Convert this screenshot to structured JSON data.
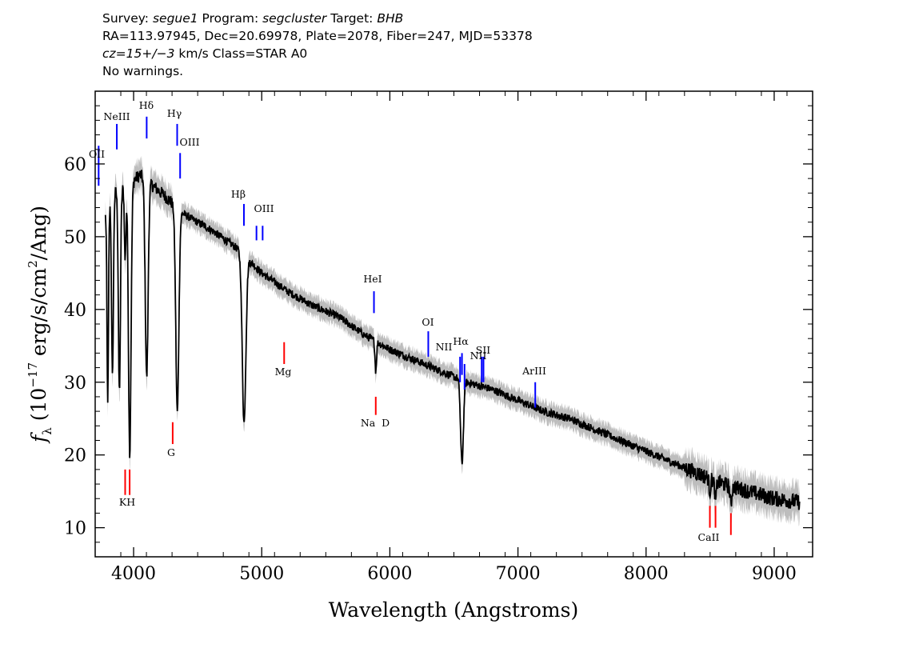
{
  "header": {
    "line1": {
      "survey_label": "Survey: ",
      "survey": "segue1",
      "program_label": " Program: ",
      "program": "segcluster",
      "target_label": " Target: ",
      "target": "BHB"
    },
    "line2": "RA=113.97945, Dec=20.69978, Plate=2078, Fiber=247, MJD=53378",
    "line3": {
      "cz": "cz=15+/−3",
      "rest": " km/s Class=STAR A0"
    },
    "line4": "No warnings."
  },
  "chart_data": {
    "type": "line",
    "title": "",
    "xlabel": "Wavelength (Angstroms)",
    "ylabel": {
      "f": "f",
      "sub": "λ",
      "pre": " (10",
      "exp": "−17",
      "mid": " erg/s/cm",
      "exp2": "2",
      "post": "/Ang)"
    },
    "xlim": [
      3700,
      9300
    ],
    "ylim": [
      6,
      70
    ],
    "xticks": [
      4000,
      5000,
      6000,
      7000,
      8000,
      9000
    ],
    "yticks": [
      10,
      20,
      30,
      40,
      50,
      60
    ],
    "colors": {
      "spectrum": "#000000",
      "error": "#bdbdbd",
      "emission": "#0000ff",
      "absorption": "#ff0000"
    },
    "continuum": [
      [
        3780,
        53
      ],
      [
        3850,
        56
      ],
      [
        3950,
        57
      ],
      [
        4050,
        58.5
      ],
      [
        4150,
        57
      ],
      [
        4250,
        55.5
      ],
      [
        4400,
        53
      ],
      [
        4600,
        51
      ],
      [
        4800,
        48.5
      ],
      [
        5000,
        45
      ],
      [
        5200,
        42.5
      ],
      [
        5400,
        40.5
      ],
      [
        5600,
        39
      ],
      [
        5800,
        36.5
      ],
      [
        6000,
        34.5
      ],
      [
        6200,
        33
      ],
      [
        6400,
        31.5
      ],
      [
        6600,
        30
      ],
      [
        6800,
        29
      ],
      [
        7000,
        27.5
      ],
      [
        7200,
        26
      ],
      [
        7400,
        25
      ],
      [
        7600,
        23.5
      ],
      [
        7800,
        22
      ],
      [
        8000,
        20.5
      ],
      [
        8200,
        19
      ],
      [
        8400,
        17.5
      ],
      [
        8600,
        16
      ],
      [
        8800,
        15
      ],
      [
        9000,
        14
      ],
      [
        9200,
        13.5
      ]
    ],
    "absorption_features": [
      {
        "center": 3798,
        "depth": 26,
        "width": 6
      },
      {
        "center": 3835,
        "depth": 25,
        "width": 7
      },
      {
        "center": 3889,
        "depth": 28,
        "width": 8
      },
      {
        "center": 3934,
        "depth": 10,
        "width": 6
      },
      {
        "center": 3970,
        "depth": 37,
        "width": 10
      },
      {
        "center": 4102,
        "depth": 27,
        "width": 11
      },
      {
        "center": 4341,
        "depth": 28,
        "width": 12
      },
      {
        "center": 4862,
        "depth": 23,
        "width": 14
      },
      {
        "center": 5890,
        "depth": 4,
        "width": 6
      },
      {
        "center": 6563,
        "depth": 11.5,
        "width": 11
      },
      {
        "center": 8498,
        "depth": 1.8,
        "width": 6
      },
      {
        "center": 8542,
        "depth": 2.5,
        "width": 7
      },
      {
        "center": 8662,
        "depth": 2.5,
        "width": 7
      }
    ],
    "emission_lines": [
      {
        "label": "OII",
        "wave": 3727,
        "top": 62.5,
        "bottom": 57
      },
      {
        "label": "NeIII",
        "wave": 3869,
        "top": 65.5,
        "bottom": 62
      },
      {
        "label": "Hδ",
        "wave": 4102,
        "top": 66.5,
        "bottom": 63.5
      },
      {
        "label": "Hγ",
        "wave": 4340,
        "top": 65.5,
        "bottom": 62.5
      },
      {
        "label": "OIII",
        "wave": 4363,
        "top": 61.5,
        "bottom": 58
      },
      {
        "label": "Hβ",
        "wave": 4861,
        "top": 54.5,
        "bottom": 51.5
      },
      {
        "label": "OIII",
        "wave": 4959,
        "top": 51.5,
        "bottom": 49.5
      },
      {
        "label": "OIII",
        "wave": 5007,
        "top": 51.5,
        "bottom": 49.5
      },
      {
        "label": "HeI",
        "wave": 5876,
        "top": 42.5,
        "bottom": 39.5
      },
      {
        "label": "OI",
        "wave": 6300,
        "top": 37,
        "bottom": 33.5
      },
      {
        "label": "NII",
        "wave": 6548,
        "top": 33.5,
        "bottom": 30
      },
      {
        "label": "Hα",
        "wave": 6563,
        "top": 34,
        "bottom": 31
      },
      {
        "label": "NII",
        "wave": 6583,
        "top": 32.5,
        "bottom": 29
      },
      {
        "label": "SII",
        "wave": 6717,
        "top": 33.5,
        "bottom": 30
      },
      {
        "label": "SII",
        "wave": 6731,
        "top": 33.5,
        "bottom": 30
      },
      {
        "label": "ArIII",
        "wave": 7135,
        "top": 30,
        "bottom": 26.5
      }
    ],
    "absorption_lines": [
      {
        "label": "K",
        "wave": 3934,
        "top": 18,
        "bottom": 14.5
      },
      {
        "label": "H",
        "wave": 3969,
        "top": 18,
        "bottom": 14.5
      },
      {
        "label": "G",
        "wave": 4305,
        "top": 24.5,
        "bottom": 21.5
      },
      {
        "label": "Mg",
        "wave": 5175,
        "top": 35.5,
        "bottom": 32.5
      },
      {
        "label": "Na D",
        "wave": 5890,
        "top": 28,
        "bottom": 25.5
      },
      {
        "label": "CaII",
        "wave": 8498,
        "top": 13,
        "bottom": 10
      },
      {
        "label": "CaII",
        "wave": 8542,
        "top": 13,
        "bottom": 10
      },
      {
        "label": "CaII",
        "wave": 8662,
        "top": 12,
        "bottom": 9
      }
    ],
    "labels": {
      "OII": "OII",
      "NeIII": "NeIII",
      "Hdelta": "Hδ",
      "Hgamma": "Hγ",
      "OIII_4363": "OIII",
      "Hbeta": "Hβ",
      "OIII_5007": "OIII",
      "HeI": "HeI",
      "OI": "OI",
      "NII_a": "NII",
      "Halpha": "Hα",
      "NII_b": "NII",
      "SII": "SII",
      "ArIII": "ArIII",
      "KH": "KH",
      "G": "G",
      "Mg": "Mg",
      "NaD": "Na  D",
      "CaII": "CaII"
    }
  }
}
